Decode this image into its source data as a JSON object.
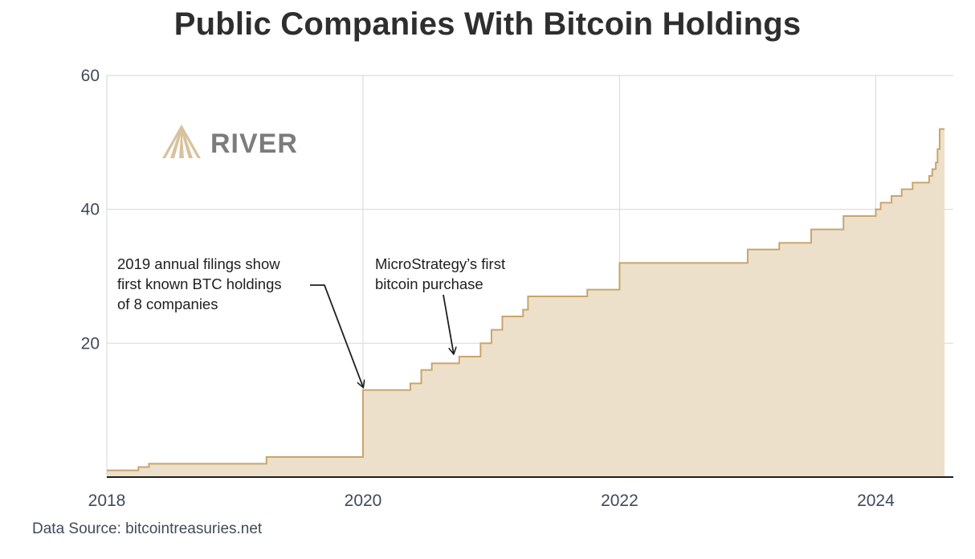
{
  "chart_data": {
    "type": "area",
    "title": "Public Companies With Bitcoin Holdings",
    "xlabel": "",
    "ylabel": "",
    "x_ticks": [
      "2018",
      "2020",
      "2022",
      "2024"
    ],
    "y_ticks": [
      20,
      40,
      60
    ],
    "ylim": [
      0,
      60
    ],
    "xlim": [
      "2018-01-01",
      "2024-07-15"
    ],
    "grid": true,
    "step": true,
    "series": [
      {
        "x": [
          "2018-01-01",
          "2018-03-15",
          "2018-04-01",
          "2018-05-01",
          "2018-07-01",
          "2019-04-01",
          "2019-12-31",
          "2020-01-01",
          "2020-03-01",
          "2020-05-15",
          "2020-06-01",
          "2020-06-15",
          "2020-07-15",
          "2020-10-01",
          "2020-12-01",
          "2021-01-01",
          "2021-02-01",
          "2021-03-01",
          "2021-04-01",
          "2021-04-15",
          "2021-06-01",
          "2021-09-01",
          "2021-10-01",
          "2022-01-01",
          "2022-12-01",
          "2023-01-01",
          "2023-04-01",
          "2023-07-01",
          "2023-10-01",
          "2024-01-01",
          "2024-01-15",
          "2024-02-15",
          "2024-03-15",
          "2024-04-15",
          "2024-06-01",
          "2024-06-10",
          "2024-06-20",
          "2024-06-25",
          "2024-07-01",
          "2024-07-15"
        ],
        "values": [
          1,
          1,
          1.5,
          2,
          2,
          3,
          3,
          13,
          13,
          14,
          14,
          16,
          17,
          18,
          20,
          22,
          24,
          24,
          25,
          27,
          27,
          27,
          28,
          32,
          32,
          34,
          35,
          37,
          39,
          40,
          41,
          42,
          43,
          44,
          45,
          46,
          47,
          49,
          52,
          52
        ]
      }
    ],
    "colors": {
      "fill": "#ede0cb",
      "line": "#c9a56b",
      "axis": "#1f1f1f",
      "grid": "#dcdcdc"
    },
    "annotations": [
      {
        "lines": [
          "2019 annual filings show",
          "first known BTC holdings",
          "of 8 companies"
        ],
        "target_x": "2020-01-01",
        "target_y": 13
      },
      {
        "lines": [
          "MicroStrategy’s first",
          "bitcoin purchase"
        ],
        "target_x": "2020-09-15",
        "target_y": 18
      }
    ]
  },
  "brand": {
    "name": "RIVER",
    "icon": "river-logo-icon",
    "color": "#d8c29d"
  },
  "source": "Data Source: bitcointreasuries.net"
}
